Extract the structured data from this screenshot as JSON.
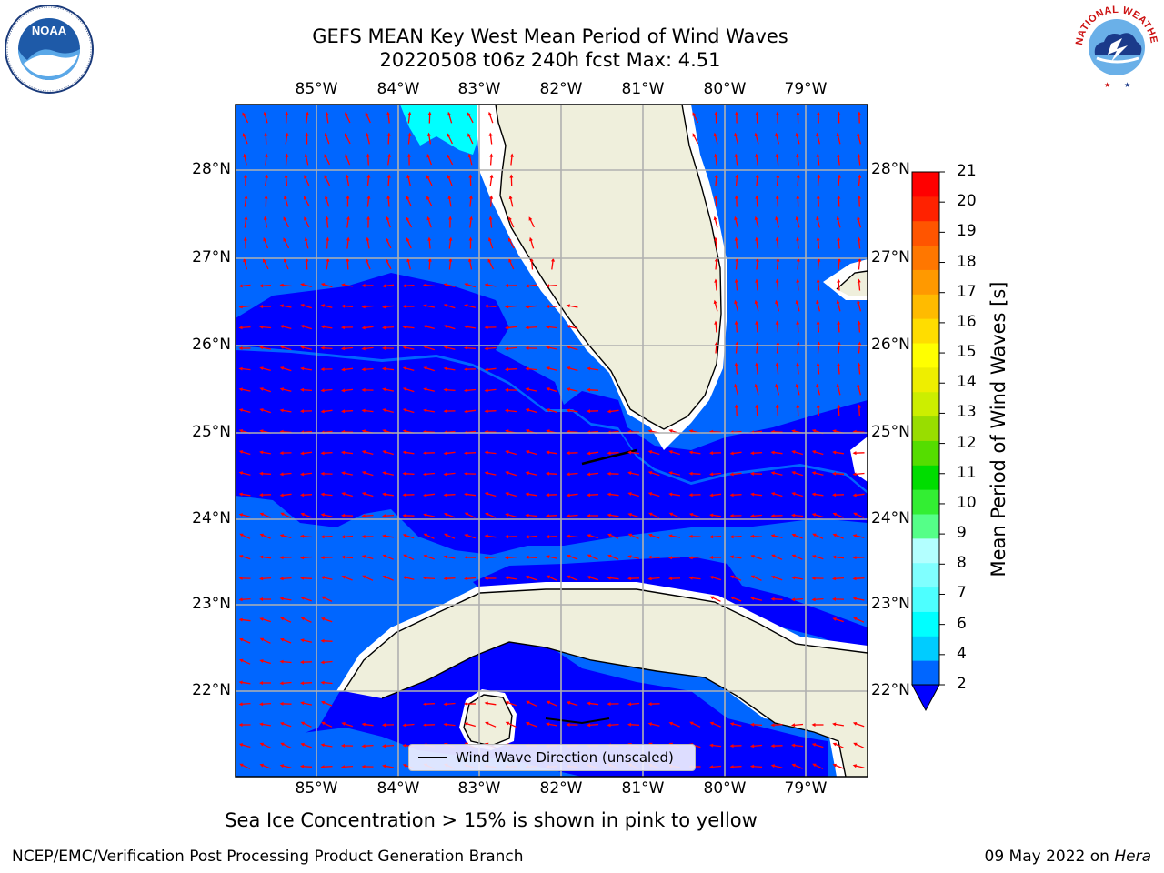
{
  "header": {
    "title_line1": "GEFS MEAN Key West Mean Period of Wind Waves",
    "title_line2": "20220508 t06z 240h fcst   Max: 4.51"
  },
  "map": {
    "longitude_labels": [
      "85°W",
      "84°W",
      "83°W",
      "82°W",
      "81°W",
      "80°W",
      "79°W"
    ],
    "latitude_labels": [
      "28°N",
      "27°N",
      "26°N",
      "25°N",
      "24°N",
      "23°N",
      "22°N"
    ],
    "legend_label": "Wind Wave Direction (unscaled)",
    "land_color": "#efefdc",
    "arrow_color": "#ff0000",
    "grid_color": "#b0b0b0"
  },
  "colorbar": {
    "label": "Mean Period of Wind Waves [s]",
    "ticks": [
      "21",
      "20",
      "19",
      "18",
      "17",
      "16",
      "15",
      "14",
      "13",
      "12",
      "11",
      "10",
      "9",
      "8",
      "7",
      "6",
      "4",
      "2"
    ],
    "colors": [
      "#0066ff",
      "#00ccff",
      "#00ffff",
      "#4dffff",
      "#80ffff",
      "#b3ffff",
      "#55ff88",
      "#33ee33",
      "#00dd00",
      "#55dd00",
      "#99dd00",
      "#ccee00",
      "#eeee00",
      "#ffff00",
      "#ffdd00",
      "#ffbb00",
      "#ff9900",
      "#ff7700",
      "#ff5500",
      "#ff2200",
      "#ff0000"
    ],
    "under_color": "#0000ff"
  },
  "chart_data": {
    "type": "heatmap",
    "title": "GEFS MEAN Key West Mean Period of Wind Waves",
    "subtitle": "20220508 t06z 240h fcst   Max: 4.51",
    "variable": "Mean Period of Wind Waves [s]",
    "units": "s",
    "max_value": 4.51,
    "lon_range": [
      -86,
      -78.3
    ],
    "lat_range": [
      21,
      28.8
    ],
    "colorbar_levels": [
      2,
      4,
      6,
      7,
      8,
      9,
      10,
      11,
      12,
      13,
      14,
      15,
      16,
      17,
      18,
      19,
      20,
      21
    ],
    "legend": [
      "Wind Wave Direction (unscaled)"
    ]
  },
  "footer": {
    "subtitle": "Sea Ice Concentration > 15% is shown in pink to yellow",
    "credit": "NCEP/EMC/Verification Post Processing Product Generation Branch",
    "date": "09 May 2022 on ",
    "host": "Hera"
  },
  "logos": {
    "left_name": "NOAA",
    "right_name": "NATIONAL WEATHER SERVICE"
  }
}
